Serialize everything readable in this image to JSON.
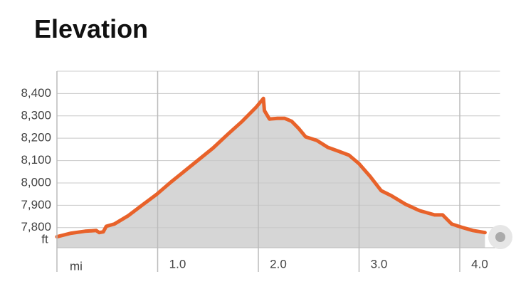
{
  "chart_data": {
    "type": "area-line",
    "title": "Elevation",
    "x_label": "mi",
    "y_label": "ft",
    "x": [
      0,
      0.14,
      0.28,
      0.39,
      0.42,
      0.46,
      0.49,
      0.57,
      0.71,
      0.85,
      0.99,
      1.13,
      1.27,
      1.41,
      1.55,
      1.7,
      1.84,
      1.98,
      2.05,
      2.06,
      2.11,
      2.19,
      2.26,
      2.33,
      2.4,
      2.47,
      2.58,
      2.69,
      2.79,
      2.9,
      3.0,
      3.11,
      3.22,
      3.32,
      3.46,
      3.6,
      3.75,
      3.83,
      3.92,
      4.03,
      4.13,
      4.25
    ],
    "values": [
      7759,
      7775,
      7784,
      7787,
      7778,
      7781,
      7806,
      7816,
      7854,
      7902,
      7949,
      8003,
      8054,
      8105,
      8156,
      8219,
      8276,
      8340,
      8378,
      8324,
      8286,
      8289,
      8289,
      8276,
      8244,
      8206,
      8190,
      8159,
      8143,
      8124,
      8086,
      8029,
      7965,
      7943,
      7905,
      7876,
      7857,
      7857,
      7816,
      7800,
      7787,
      7778
    ],
    "color": "#e8622a",
    "fill_color": "#d6d6d6",
    "xlim": [
      0,
      4.4
    ],
    "ylim": [
      7710,
      8500
    ],
    "xticks": [
      {
        "value": 1,
        "label": "1.0"
      },
      {
        "value": 2,
        "label": "2.0"
      },
      {
        "value": 3,
        "label": "3.0"
      },
      {
        "value": 4,
        "label": "4.0"
      }
    ],
    "yticks": [
      {
        "value": 7800,
        "label": "7,800"
      },
      {
        "value": 7900,
        "label": "7,900"
      },
      {
        "value": 8000,
        "label": "8,000"
      },
      {
        "value": 8100,
        "label": "8,100"
      },
      {
        "value": 8200,
        "label": "8,200"
      },
      {
        "value": 8300,
        "label": "8,300"
      },
      {
        "value": 8400,
        "label": "8,400"
      }
    ],
    "grid": true
  }
}
